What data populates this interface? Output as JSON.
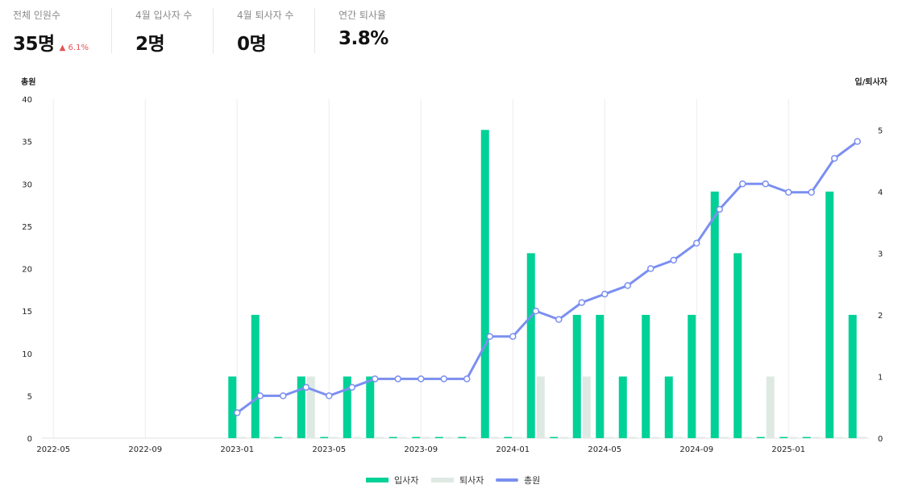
{
  "kpis": [
    {
      "label": "전체 인원수",
      "value": "35명",
      "delta": "▲ 6.1%"
    },
    {
      "label": "4월 입사자 수",
      "value": "2명"
    },
    {
      "label": "4월 퇴사자 수",
      "value": "0명"
    },
    {
      "label": "연간 퇴사율",
      "value": "3.8%"
    }
  ],
  "colors": {
    "hires": "#00d196",
    "exits": "#dfe9e4",
    "total": "#7b8ff0",
    "delta": "#e55353"
  },
  "chart_data": {
    "type": "bar+line",
    "left_axis_title": "총원",
    "right_axis_title": "입/퇴사자",
    "left_ylim": [
      0,
      40
    ],
    "left_ticks": [
      0,
      5,
      10,
      15,
      20,
      25,
      30,
      35,
      40
    ],
    "right_ylim": [
      0,
      5.5
    ],
    "right_ticks": [
      0,
      1,
      2,
      3,
      4,
      5
    ],
    "x_tick_labels": [
      "2022-05",
      "2022-09",
      "2023-01",
      "2023-05",
      "2023-09",
      "2024-01",
      "2024-05",
      "2024-09",
      "2025-01"
    ],
    "months": [
      "2022-05",
      "2022-06",
      "2022-07",
      "2022-08",
      "2022-09",
      "2022-10",
      "2022-11",
      "2022-12",
      "2023-01",
      "2023-02",
      "2023-03",
      "2023-04",
      "2023-05",
      "2023-06",
      "2023-07",
      "2023-08",
      "2023-09",
      "2023-10",
      "2023-11",
      "2023-12",
      "2024-01",
      "2024-02",
      "2024-03",
      "2024-04",
      "2024-05",
      "2024-06",
      "2024-07",
      "2024-08",
      "2024-09",
      "2024-10",
      "2024-11",
      "2024-12",
      "2025-01",
      "2025-02",
      "2025-03",
      "2025-04"
    ],
    "series": [
      {
        "name": "입사자",
        "axis": "right",
        "type": "bar",
        "values": [
          null,
          null,
          null,
          null,
          null,
          null,
          null,
          null,
          1,
          2,
          0,
          1,
          0,
          1,
          1,
          0,
          0,
          0,
          0,
          5,
          0,
          3,
          0,
          2,
          2,
          1,
          2,
          1,
          2,
          4,
          3,
          0,
          0,
          0,
          4,
          2
        ]
      },
      {
        "name": "퇴사자",
        "axis": "right",
        "type": "bar",
        "values": [
          null,
          null,
          null,
          null,
          null,
          null,
          null,
          null,
          0,
          0,
          0,
          1,
          0,
          0,
          0,
          0,
          0,
          0,
          0,
          0,
          0,
          1,
          0,
          1,
          0,
          0,
          0,
          0,
          0,
          0,
          0,
          1,
          0,
          0,
          0,
          0
        ]
      },
      {
        "name": "총원",
        "axis": "left",
        "type": "line",
        "values": [
          null,
          null,
          null,
          null,
          null,
          null,
          null,
          null,
          3,
          5,
          5,
          6,
          5,
          6,
          7,
          7,
          7,
          7,
          7,
          12,
          12,
          15,
          14,
          16,
          17,
          18,
          20,
          21,
          23,
          27,
          30,
          30,
          29,
          29,
          33,
          35
        ]
      }
    ],
    "legend": [
      "입사자",
      "퇴사자",
      "총원"
    ],
    "legend_position": "bottom-center"
  }
}
